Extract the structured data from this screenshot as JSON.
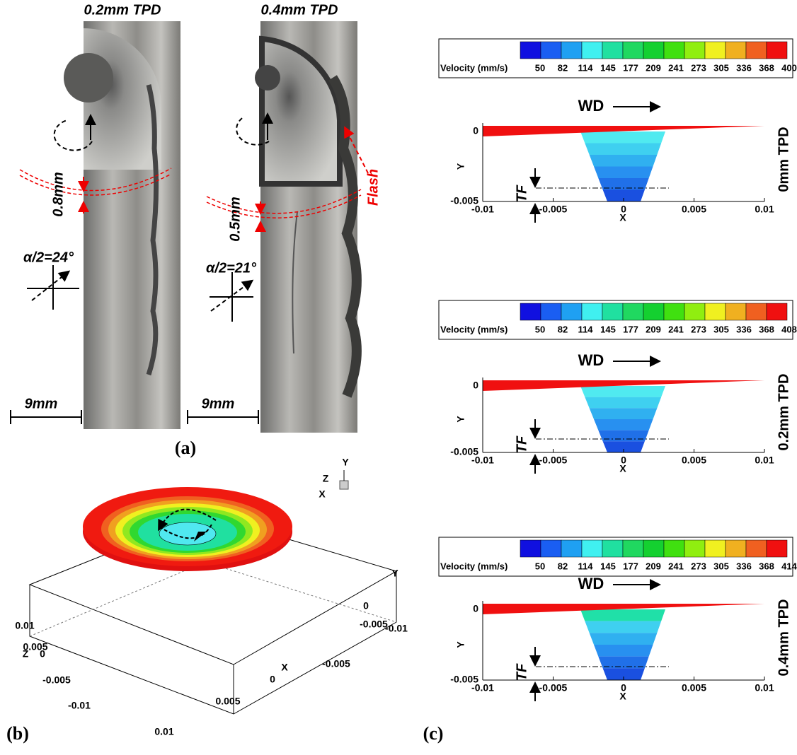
{
  "panel_a": {
    "label": "(a)",
    "photos": [
      {
        "title": "0.2mm TPD",
        "gap": "0.8mm",
        "angle": "α/2=24°",
        "scale": "9mm"
      },
      {
        "title": "0.4mm TPD",
        "gap": "0.5mm",
        "angle": "α/2=21°",
        "scale": "9mm",
        "callout": "Flash"
      }
    ]
  },
  "panel_b": {
    "label": "(b)",
    "triad": [
      "Y",
      "Z",
      "X"
    ],
    "x_label": "X",
    "y_label": "Y",
    "z_label": "Z",
    "x_ticks": [
      "0.01",
      "0.005",
      "0",
      "-0.005",
      "-0.01"
    ],
    "z_ticks": [
      "0.01",
      "0.005",
      "0",
      "-0.005",
      "-0.01"
    ],
    "y_ticks": [
      "0",
      "-0.005"
    ]
  },
  "panel_c": {
    "label": "(c)",
    "plots": [
      {
        "legend_title": "Velocity (mm/s)",
        "levels": [
          "50",
          "82",
          "114",
          "145",
          "177",
          "209",
          "241",
          "273",
          "305",
          "336",
          "368",
          "400"
        ],
        "arrow_label": "WD",
        "x_label": "X",
        "y_label": "Y",
        "thickness_label": "TF",
        "case": "0mm TPD",
        "x_ticks": [
          "-0.01",
          "-0.005",
          "0",
          "0.005",
          "0.01"
        ],
        "y_ticks": [
          "0",
          "-0.005"
        ]
      },
      {
        "legend_title": "Velocity (mm/s)",
        "levels": [
          "50",
          "82",
          "114",
          "145",
          "177",
          "209",
          "241",
          "273",
          "305",
          "336",
          "368",
          "408"
        ],
        "arrow_label": "WD",
        "x_label": "X",
        "y_label": "Y",
        "thickness_label": "TF",
        "case": "0.2mm TPD",
        "x_ticks": [
          "-0.01",
          "-0.005",
          "0",
          "0.005",
          "0.01"
        ],
        "y_ticks": [
          "0",
          "-0.005"
        ]
      },
      {
        "legend_title": "Velocity (mm/s)",
        "levels": [
          "50",
          "82",
          "114",
          "145",
          "177",
          "209",
          "241",
          "273",
          "305",
          "336",
          "368",
          "414"
        ],
        "arrow_label": "WD",
        "x_label": "X",
        "y_label": "Y",
        "thickness_label": "TF",
        "case": "0.4mm TPD",
        "x_ticks": [
          "-0.01",
          "-0.005",
          "0",
          "0.005",
          "0.01"
        ],
        "y_ticks": [
          "0",
          "-0.005"
        ]
      }
    ]
  }
}
